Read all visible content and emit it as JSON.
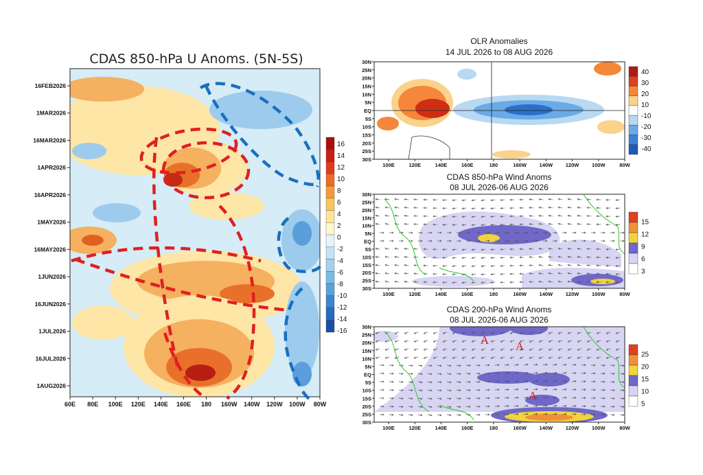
{
  "chart_data": [
    {
      "type": "heatmap",
      "title": "CDAS 850-hPa U Anoms. (5N-5S)",
      "x_tick_labels": [
        "60E",
        "80E",
        "100E",
        "120E",
        "140E",
        "160E",
        "180",
        "160W",
        "140W",
        "120W",
        "100W",
        "80W"
      ],
      "y_tick_labels": [
        "16FEB2026",
        "1MAR2026",
        "16MAR2026",
        "1APR2026",
        "16APR2026",
        "1MAY2026",
        "16MAY2026",
        "1JUN2026",
        "16JUN2026",
        "1JUL2026",
        "16JUL2026",
        "1AUG2026"
      ],
      "colorbar": [
        16,
        14,
        12,
        10,
        8,
        6,
        4,
        2,
        0,
        -2,
        -4,
        -6,
        -8,
        -10,
        -12,
        -14,
        -16
      ],
      "colors": {
        "positive_strong": "#b01010",
        "positive": "#f08a30",
        "positive_weak": "#fde7a8",
        "negative_weak": "#d8eef8",
        "negative": "#8cc4ec",
        "negative_strong": "#1a5fb0"
      }
    },
    {
      "type": "heatmap",
      "title": "OLR Anomalies",
      "subtitle": "14 JUL 2026 to 08 AUG 2026",
      "x_tick_labels": [
        "100E",
        "120E",
        "140E",
        "160E",
        "180",
        "160W",
        "140W",
        "120W",
        "100W",
        "80W"
      ],
      "y_tick_labels": [
        "30N",
        "25N",
        "20N",
        "15N",
        "10N",
        "5N",
        "EQ",
        "5S",
        "10S",
        "15S",
        "20S",
        "25S",
        "30S"
      ],
      "colorbar": [
        40,
        30,
        20,
        10,
        -10,
        -20,
        -30,
        -40
      ]
    },
    {
      "type": "heatmap",
      "title": "CDAS 850-hPa Wind Anoms",
      "subtitle": "08 JUL 2026-06 AUG 2026",
      "x_tick_labels": [
        "100E",
        "120E",
        "140E",
        "160E",
        "180",
        "160W",
        "140W",
        "120W",
        "100W",
        "80W"
      ],
      "y_tick_labels": [
        "30N",
        "25N",
        "20N",
        "15N",
        "10N",
        "5N",
        "EQ",
        "5S",
        "10S",
        "15S",
        "20S",
        "25S",
        "30S"
      ],
      "colorbar": [
        15,
        12,
        9,
        6,
        3
      ]
    },
    {
      "type": "heatmap",
      "title": "CDAS 200-hPa Wind Anoms",
      "subtitle": "08 JUL 2026-06 AUG 2026",
      "x_tick_labels": [
        "100E",
        "120E",
        "140E",
        "160E",
        "180",
        "160W",
        "140W",
        "120W",
        "100W",
        "80W"
      ],
      "y_tick_labels": [
        "30N",
        "25N",
        "20N",
        "15N",
        "10N",
        "5N",
        "EQ",
        "5S",
        "10S",
        "15S",
        "20S",
        "25S",
        "30S"
      ],
      "colorbar": [
        25,
        20,
        15,
        10,
        5
      ],
      "annotations": [
        "A",
        "A",
        "A"
      ]
    }
  ]
}
